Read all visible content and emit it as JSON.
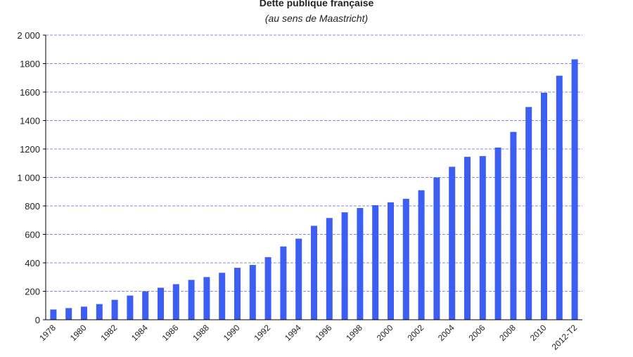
{
  "chart_data": {
    "type": "bar",
    "title": "Dette publique française",
    "subtitle": "(au sens de Maastricht)",
    "categories": [
      "1978",
      null,
      "1980",
      null,
      "1982",
      null,
      "1984",
      null,
      "1986",
      null,
      "1988",
      null,
      "1990",
      null,
      "1992",
      null,
      "1994",
      null,
      "1996",
      null,
      "1998",
      null,
      "2000",
      null,
      "2002",
      null,
      "2004",
      null,
      "2006",
      null,
      "2008",
      null,
      "2010",
      null,
      "2012-T2"
    ],
    "values": [
      72,
      82,
      92,
      110,
      140,
      170,
      200,
      225,
      250,
      280,
      300,
      330,
      365,
      385,
      440,
      515,
      570,
      660,
      715,
      755,
      785,
      805,
      825,
      850,
      910,
      1000,
      1075,
      1145,
      1150,
      1210,
      1320,
      1495,
      1595,
      1715,
      1830
    ],
    "color": "#3d5ef2",
    "ylim": [
      0,
      2000
    ],
    "yticks": [
      0,
      200,
      400,
      600,
      800,
      {
        "value": 1000,
        "label": "1 000"
      },
      1200,
      1400,
      1600,
      1800,
      {
        "value": 2000,
        "label": "2 000"
      }
    ],
    "grid": true
  }
}
